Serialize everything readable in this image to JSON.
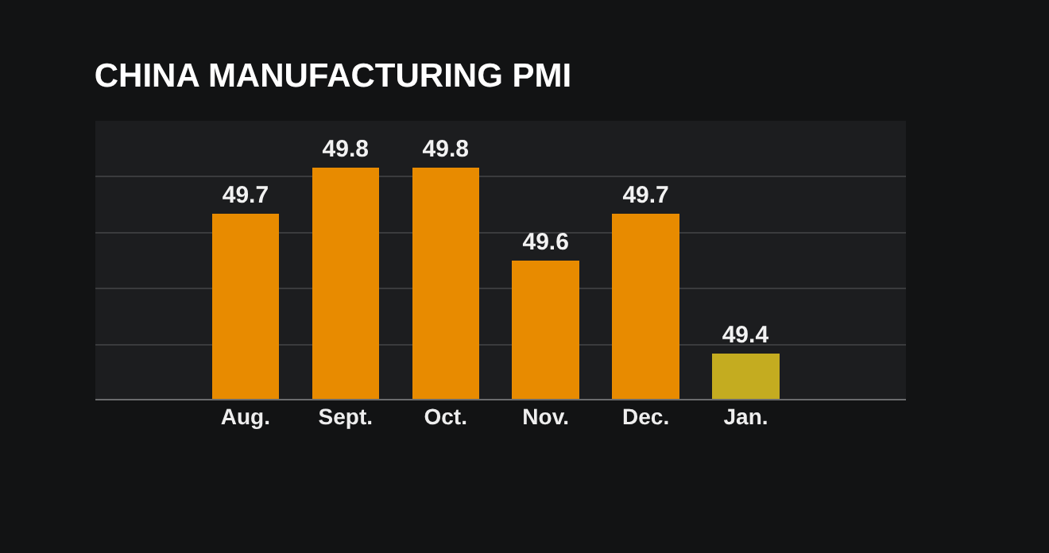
{
  "chart_data": {
    "type": "bar",
    "title": "CHINA MANUFACTURING PMI",
    "categories": [
      "Aug.",
      "Sept.",
      "Oct.",
      "Nov.",
      "Dec.",
      "Jan."
    ],
    "values": [
      49.7,
      49.8,
      49.8,
      49.6,
      49.7,
      49.4
    ],
    "colors": [
      "#e88b00",
      "#e88b00",
      "#e88b00",
      "#e88b00",
      "#e88b00",
      "#c4ac20"
    ],
    "ylim": [
      49.3,
      49.9
    ],
    "yticks": [
      {
        "value": 49.3,
        "label": null
      },
      {
        "value": 49.42,
        "label": null
      },
      {
        "value": 49.54,
        "label": null
      },
      {
        "value": 49.66,
        "label": null
      },
      {
        "value": 49.78,
        "label": null
      },
      {
        "value": 49.9,
        "label": null
      }
    ],
    "grid": "y",
    "data_labels": true,
    "tick_labels": "x"
  }
}
